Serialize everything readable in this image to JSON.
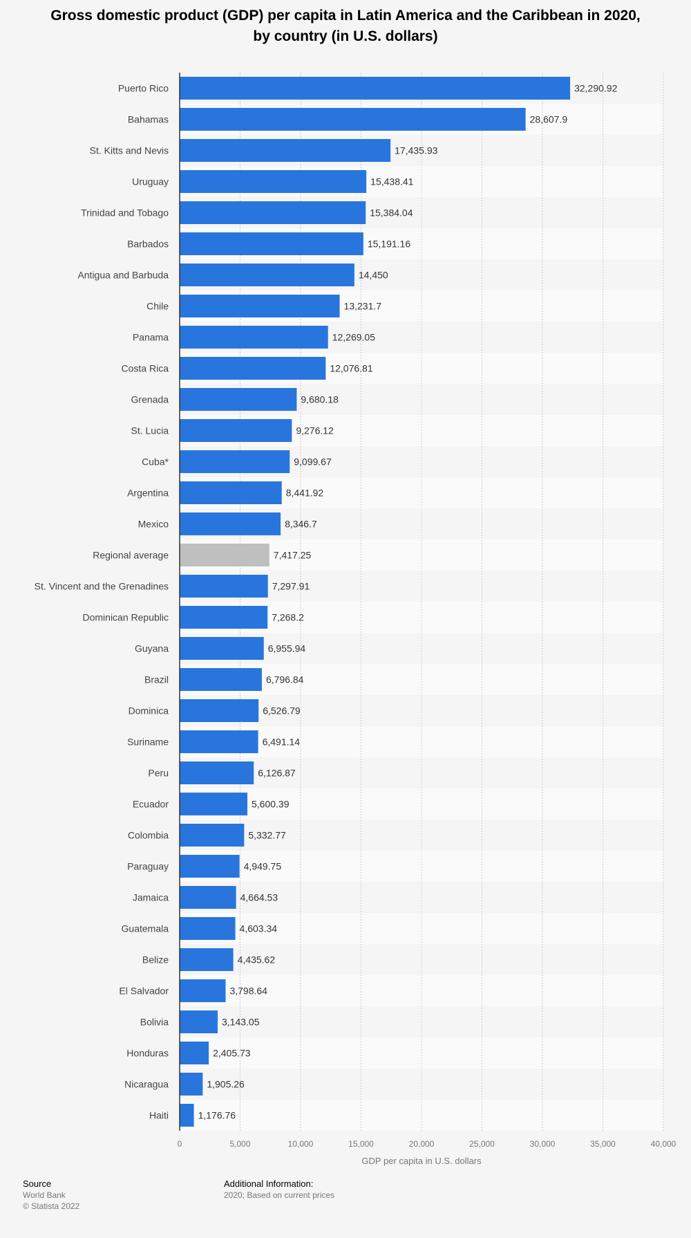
{
  "title_lines": [
    "Gross domestic product (GDP) per capita in Latin America and the Caribbean in 2020,",
    "by country (in U.S. dollars)"
  ],
  "chart_data": {
    "type": "bar",
    "orientation": "horizontal",
    "categories": [
      "Puerto Rico",
      "Bahamas",
      "St. Kitts and Nevis",
      "Uruguay",
      "Trinidad and Tobago",
      "Barbados",
      "Antigua and Barbuda",
      "Chile",
      "Panama",
      "Costa Rica",
      "Grenada",
      "St. Lucia",
      "Cuba*",
      "Argentina",
      "Mexico",
      "Regional average",
      "St. Vincent and the Grenadines",
      "Dominican Republic",
      "Guyana",
      "Brazil",
      "Dominica",
      "Suriname",
      "Peru",
      "Ecuador",
      "Colombia",
      "Paraguay",
      "Jamaica",
      "Guatemala",
      "Belize",
      "El Salvador",
      "Bolivia",
      "Honduras",
      "Nicaragua",
      "Haiti"
    ],
    "values": [
      32290.92,
      28607.9,
      17435.93,
      15438.41,
      15384.04,
      15191.16,
      14450,
      13231.7,
      12269.05,
      12076.81,
      9680.18,
      9276.12,
      9099.67,
      8441.92,
      8346.7,
      7417.25,
      7297.91,
      7268.2,
      6955.94,
      6796.84,
      6526.79,
      6491.14,
      6126.87,
      5600.39,
      5332.77,
      4949.75,
      4664.53,
      4603.34,
      4435.62,
      3798.64,
      3143.05,
      2405.73,
      1905.26,
      1176.76
    ],
    "value_labels": [
      "32,290.92",
      "28,607.9",
      "17,435.93",
      "15,438.41",
      "15,384.04",
      "15,191.16",
      "14,450",
      "13,231.7",
      "12,269.05",
      "12,076.81",
      "9,680.18",
      "9,276.12",
      "9,099.67",
      "8,441.92",
      "8,346.7",
      "7,417.25",
      "7,297.91",
      "7,268.2",
      "6,955.94",
      "6,796.84",
      "6,526.79",
      "6,491.14",
      "6,126.87",
      "5,600.39",
      "5,332.77",
      "4,949.75",
      "4,664.53",
      "4,603.34",
      "4,435.62",
      "3,798.64",
      "3,143.05",
      "2,405.73",
      "1,905.26",
      "1,176.76"
    ],
    "highlight_category": "Regional average",
    "xlim": [
      0,
      40000
    ],
    "x_ticks": [
      0,
      5000,
      10000,
      15000,
      20000,
      25000,
      30000,
      35000,
      40000
    ],
    "x_tick_labels": [
      "0",
      "5,000",
      "10,000",
      "15,000",
      "20,000",
      "25,000",
      "30,000",
      "35,000",
      "40,000"
    ],
    "xlabel": "GDP per capita in U.S. dollars",
    "ylabel": "",
    "grid": "vertical dashed",
    "colors": {
      "bar": "#2876dd",
      "highlight": "#bfbfbf"
    }
  },
  "footer": {
    "source_heading": "Source",
    "source_lines": [
      "World Bank",
      "© Statista 2022"
    ],
    "info_heading": "Additional Information:",
    "info_text": "2020; Based on current prices"
  }
}
